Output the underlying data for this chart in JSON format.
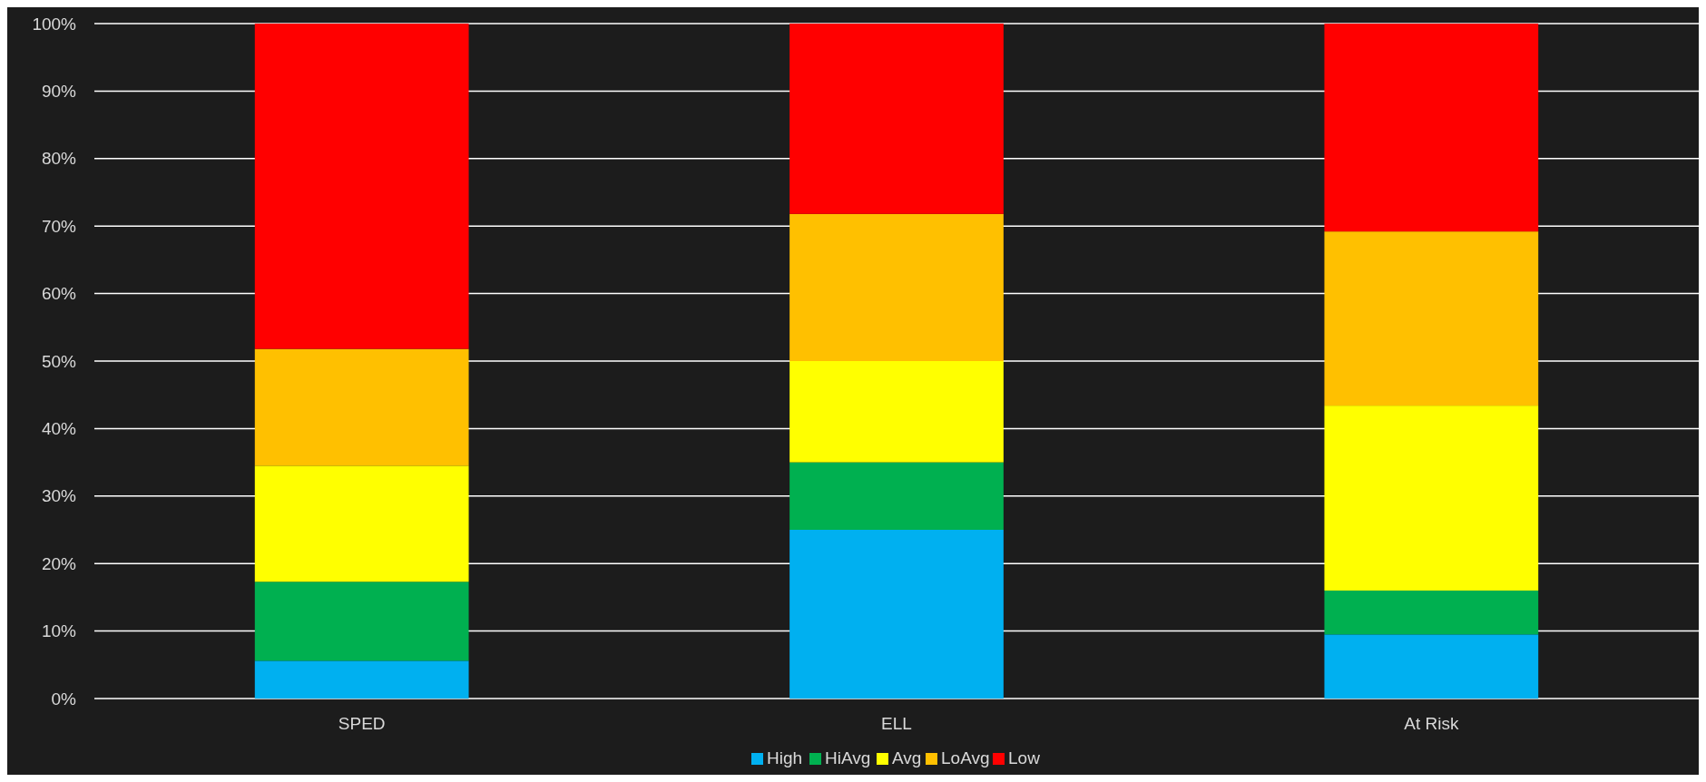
{
  "chart_data": {
    "type": "bar",
    "stacked": true,
    "categories": [
      "SPED",
      "ELL",
      "At Risk"
    ],
    "series": [
      {
        "name": "High",
        "color": "#00b0f0",
        "values": [
          5.6,
          25,
          9.5
        ]
      },
      {
        "name": "HiAvg",
        "color": "#00b050",
        "values": [
          11.7,
          10,
          6.5
        ]
      },
      {
        "name": "Avg",
        "color": "#ffff00",
        "values": [
          17.2,
          15,
          27.4
        ]
      },
      {
        "name": "LoAvg",
        "color": "#ffc000",
        "values": [
          17.3,
          21.8,
          25.8
        ]
      },
      {
        "name": "Low",
        "color": "#ff0000",
        "values": [
          48.2,
          28.2,
          30.8
        ]
      }
    ],
    "ylim": [
      0,
      100
    ],
    "yticks": [
      {
        "value": 0,
        "label": "0%"
      },
      {
        "value": 10,
        "label": "10%"
      },
      {
        "value": 20,
        "label": "20%"
      },
      {
        "value": 30,
        "label": "30%"
      },
      {
        "value": 40,
        "label": "40%"
      },
      {
        "value": 50,
        "label": "50%"
      },
      {
        "value": 60,
        "label": "60%"
      },
      {
        "value": 70,
        "label": "70%"
      },
      {
        "value": 80,
        "label": "80%"
      },
      {
        "value": 90,
        "label": "90%"
      },
      {
        "value": 100,
        "label": "100%"
      }
    ],
    "grid": "y",
    "legend": "bottom"
  }
}
